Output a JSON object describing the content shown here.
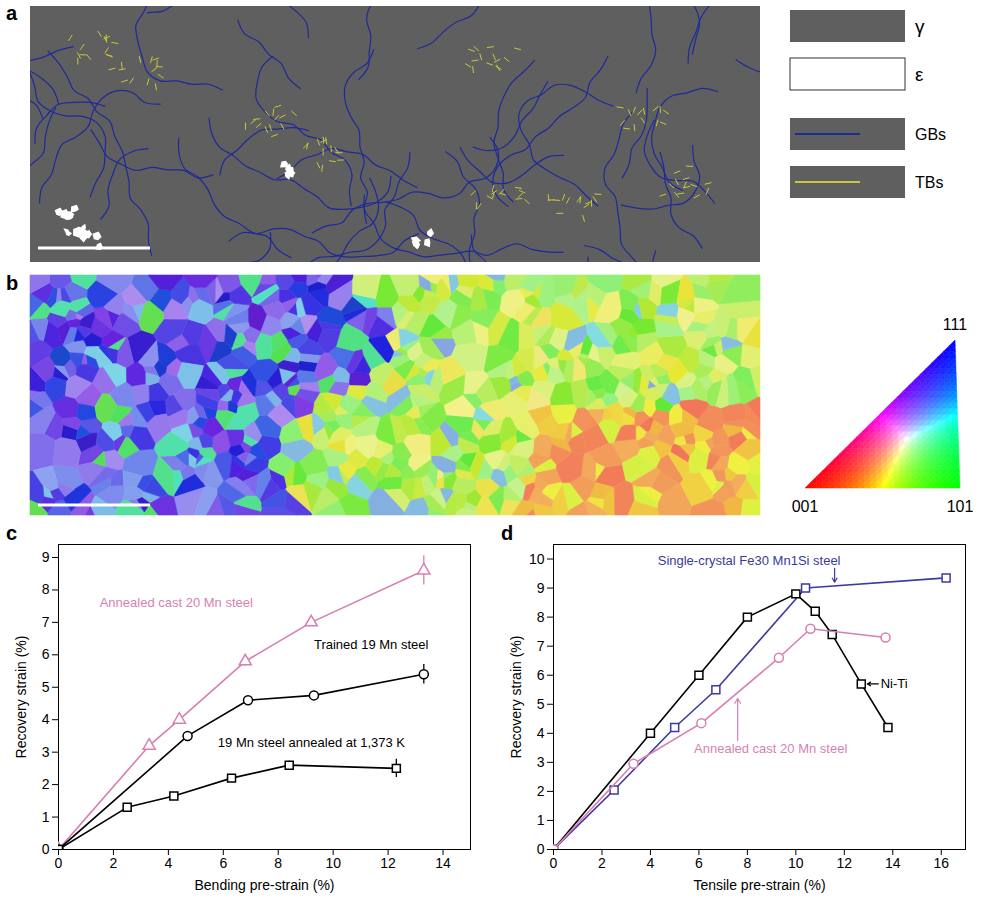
{
  "chart_data": [
    {
      "panel": "c",
      "type": "line",
      "x_label": "Bending pre-strain (%)",
      "y_label": "Recovery strain (%)",
      "xlim": [
        0,
        15
      ],
      "xticks": [
        0,
        2,
        4,
        6,
        8,
        10,
        12,
        14
      ],
      "ylim": [
        0,
        9.4
      ],
      "yticks": [
        0,
        1,
        2,
        3,
        4,
        5,
        6,
        7,
        8,
        9
      ],
      "grid": false,
      "series": [
        {
          "name": "Annealed cast 20 Mn steel",
          "color": "#d77fb3",
          "marker": "triangle",
          "x": [
            0,
            3.3,
            4.4,
            6.8,
            9.2,
            13.3
          ],
          "values": [
            0,
            3.2,
            4.0,
            5.8,
            7.0,
            8.6
          ],
          "errors": [
            0,
            0.05,
            0.06,
            0.15,
            0.1,
            0.45
          ],
          "annotation": {
            "x": 1.5,
            "y": 7.6
          }
        },
        {
          "name": "Trained 19 Mn steel",
          "color": "#000000",
          "marker": "circle",
          "x": [
            0,
            4.7,
            6.9,
            9.3,
            13.3
          ],
          "values": [
            0,
            3.5,
            4.6,
            4.75,
            5.4
          ],
          "errors": [
            0,
            0.06,
            0.06,
            0.12,
            0.3
          ],
          "annotation": {
            "x": 9.3,
            "y": 6.3
          }
        },
        {
          "name": "19 Mn steel annealed at 1,373 K",
          "color": "#000000",
          "marker": "square",
          "x": [
            0,
            2.5,
            4.2,
            6.3,
            8.4,
            12.3
          ],
          "values": [
            0,
            1.3,
            1.65,
            2.2,
            2.6,
            2.5
          ],
          "errors": [
            0,
            0.06,
            0.06,
            0.08,
            0.12,
            0.28
          ],
          "annotation": {
            "x": 5.8,
            "y": 3.3
          }
        }
      ]
    },
    {
      "panel": "d",
      "type": "line",
      "x_label": "Tensile pre-strain (%)",
      "y_label": "Recovery strain (%)",
      "xlim": [
        0,
        17
      ],
      "xticks": [
        0,
        2,
        4,
        6,
        8,
        10,
        12,
        14,
        16
      ],
      "ylim": [
        0,
        10.5
      ],
      "yticks": [
        0,
        1,
        2,
        3,
        4,
        5,
        6,
        7,
        8,
        9,
        10
      ],
      "grid": false,
      "series": [
        {
          "name": "Single-crystal Fe30 Mn1Si steel",
          "color": "#3b3b9c",
          "marker": "square",
          "x": [
            0,
            2.5,
            5,
            6.7,
            10.4,
            16.2
          ],
          "values": [
            0,
            2.05,
            4.2,
            5.5,
            9.0,
            9.35
          ],
          "annotation": {
            "x": 4.3,
            "y": 9.95,
            "arrow_from": [
              11.6,
              9.68
            ],
            "arrow_to": [
              11.6,
              9.2
            ]
          }
        },
        {
          "name": "Ni-Ti",
          "color": "#000000",
          "marker": "square",
          "x": [
            0,
            4,
            6,
            8,
            10,
            10.8,
            11.5,
            12.7,
            13.8
          ],
          "values": [
            0,
            4,
            6,
            8,
            8.8,
            8.2,
            7.4,
            5.7,
            4.2
          ],
          "annotation": {
            "x": 13.5,
            "y": 5.7,
            "arrow_from": [
              13.4,
              5.7
            ],
            "arrow_to": [
              12.95,
              5.7
            ]
          }
        },
        {
          "name": "Annealed cast 20 Mn steel",
          "color": "#d77fb3",
          "marker": "circle",
          "x": [
            0,
            3.3,
            6.1,
            9.3,
            10.6,
            13.7
          ],
          "values": [
            0,
            2.95,
            4.35,
            6.6,
            7.6,
            7.3
          ],
          "annotation": {
            "x": 5.8,
            "y": 3.45,
            "arrow_from": [
              7.6,
              3.75
            ],
            "arrow_to": [
              7.6,
              5.2
            ]
          }
        }
      ]
    }
  ],
  "micrographs": [
    {
      "panel": "a",
      "legend": [
        {
          "label": "γ",
          "color": "#5f5f5f"
        },
        {
          "label": "ε",
          "color": "#ffffff"
        },
        {
          "label": "GBs",
          "color": "#1f2a9a"
        },
        {
          "label": "TBs",
          "color": "#c9c83a"
        }
      ]
    },
    {
      "panel": "b",
      "color_key": {
        "corners": [
          "001",
          "101",
          "111"
        ]
      }
    }
  ]
}
